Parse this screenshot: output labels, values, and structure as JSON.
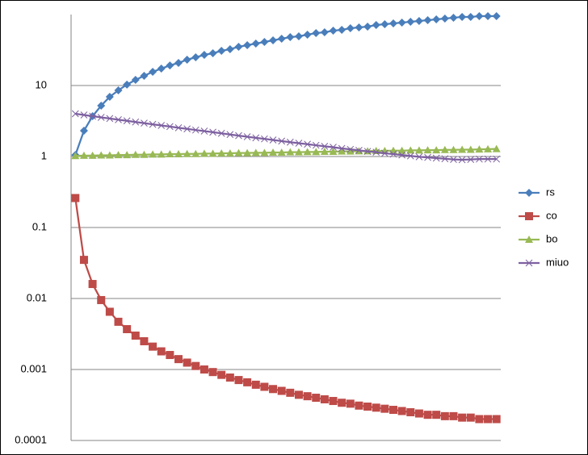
{
  "chart_data": {
    "type": "line",
    "log_scale": true,
    "grid": true,
    "legend": "right",
    "categories": [
      null,
      null,
      null,
      null,
      null,
      null,
      null,
      null,
      null,
      null,
      null,
      null,
      null,
      null,
      null,
      null,
      null,
      null,
      null,
      null,
      null,
      null,
      null,
      null,
      null,
      null,
      null,
      null,
      null,
      null,
      null,
      null,
      null,
      null,
      null,
      null,
      null,
      null,
      null,
      null,
      null,
      null,
      null,
      null,
      null,
      null,
      null,
      null,
      null,
      null
    ],
    "ylim": [
      0.0001,
      100
    ],
    "yticks": [
      0.0001,
      0.001,
      0.01,
      0.1,
      1,
      10
    ],
    "series": [
      {
        "name": "rs",
        "color": "#4a7ebb",
        "marker": "diamond",
        "values": [
          1.05,
          2.31,
          3.7,
          5.2,
          6.93,
          8.55,
          10.3,
          12.0,
          13.7,
          15.6,
          17.3,
          19.2,
          20.8,
          23.1,
          25.0,
          27.0,
          28.5,
          30.8,
          32.5,
          35.1,
          37.0,
          39.0,
          41.1,
          43.3,
          45.6,
          48.1,
          49.3,
          52.0,
          54.8,
          56.2,
          59.3,
          60.8,
          64.1,
          65.8,
          67.6,
          71.1,
          73.1,
          75.0,
          76.9,
          79.1,
          81.1,
          83.2,
          85.5,
          87.7,
          90.2,
          92.5,
          92.5,
          94.9,
          94.9,
          94.9
        ]
      },
      {
        "name": "co",
        "color": "#be4b48",
        "marker": "square",
        "values": [
          0.26,
          0.035,
          0.016,
          0.0095,
          0.0065,
          0.0047,
          0.0037,
          0.003,
          0.0025,
          0.0021,
          0.0018,
          0.0016,
          0.0014,
          0.00125,
          0.00112,
          0.001,
          0.00092,
          0.00084,
          0.00077,
          0.00071,
          0.00066,
          0.00061,
          0.00057,
          0.00053,
          0.0005,
          0.00047,
          0.00044,
          0.00042,
          0.0004,
          0.00038,
          0.00036,
          0.00034,
          0.00033,
          0.00031,
          0.0003,
          0.00029,
          0.00028,
          0.00027,
          0.00026,
          0.00025,
          0.00024,
          0.00023,
          0.00023,
          0.00022,
          0.00022,
          0.00021,
          0.00021,
          0.0002,
          0.0002,
          0.0002
        ]
      },
      {
        "name": "bo",
        "color": "#98b954",
        "marker": "triangle",
        "values": [
          1.02,
          1.03,
          1.03,
          1.04,
          1.04,
          1.05,
          1.05,
          1.06,
          1.06,
          1.07,
          1.07,
          1.08,
          1.08,
          1.09,
          1.09,
          1.1,
          1.1,
          1.11,
          1.11,
          1.12,
          1.12,
          1.13,
          1.13,
          1.14,
          1.14,
          1.15,
          1.15,
          1.16,
          1.16,
          1.17,
          1.17,
          1.18,
          1.18,
          1.19,
          1.19,
          1.2,
          1.2,
          1.21,
          1.21,
          1.22,
          1.22,
          1.23,
          1.23,
          1.24,
          1.24,
          1.25,
          1.25,
          1.26,
          1.27,
          1.28
        ]
      },
      {
        "name": "miuo",
        "color": "#7d60a0",
        "marker": "cross",
        "values": [
          4.0,
          3.85,
          3.7,
          3.56,
          3.43,
          3.3,
          3.18,
          3.06,
          2.95,
          2.84,
          2.74,
          2.64,
          2.54,
          2.45,
          2.36,
          2.28,
          2.2,
          2.12,
          2.04,
          1.97,
          1.9,
          1.83,
          1.77,
          1.71,
          1.65,
          1.59,
          1.54,
          1.49,
          1.44,
          1.39,
          1.35,
          1.3,
          1.26,
          1.22,
          1.18,
          1.15,
          1.11,
          1.08,
          1.05,
          1.02,
          0.99,
          0.97,
          0.95,
          0.93,
          0.91,
          0.9,
          0.91,
          0.92,
          0.92,
          0.92
        ]
      }
    ]
  }
}
